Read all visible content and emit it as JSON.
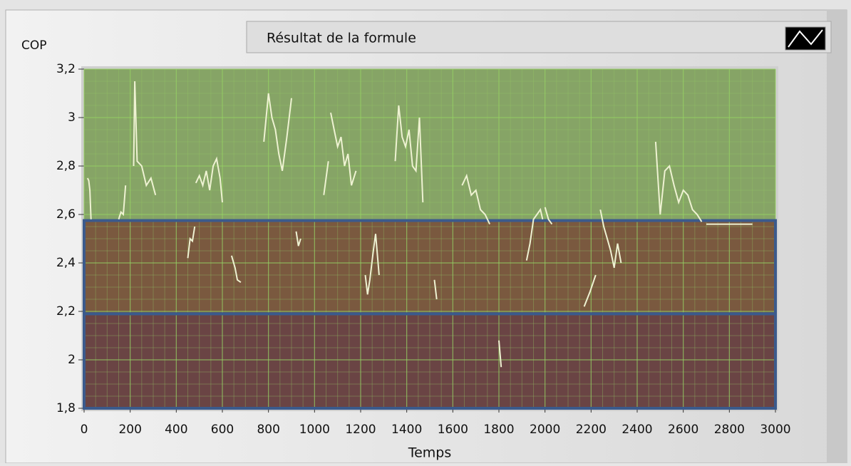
{
  "chart_data": {
    "type": "line",
    "y_label": "COP",
    "x_label": "Temps",
    "series": [
      {
        "name": "Résultat de la formule",
        "color": "#eef2d2",
        "x": [
          15,
          20,
          25,
          30,
          90,
          150,
          160,
          170,
          180,
          195,
          215,
          220,
          230,
          250,
          270,
          290,
          310,
          380,
          450,
          460,
          470,
          480,
          482,
          485,
          500,
          515,
          530,
          545,
          560,
          575,
          590,
          600,
          620,
          640,
          655,
          665,
          680,
          730,
          780,
          800,
          815,
          830,
          845,
          860,
          880,
          900,
          910,
          920,
          930,
          940,
          990,
          1040,
          1050,
          1060,
          1065,
          1070,
          1085,
          1100,
          1115,
          1130,
          1145,
          1160,
          1180,
          1200,
          1220,
          1230,
          1240,
          1255,
          1265,
          1280,
          1320,
          1350,
          1365,
          1380,
          1395,
          1410,
          1425,
          1440,
          1455,
          1470,
          1500,
          1520,
          1530,
          1600,
          1640,
          1660,
          1680,
          1700,
          1720,
          1740,
          1760,
          1780,
          1800,
          1810,
          1870,
          1920,
          1935,
          1950,
          1965,
          1980,
          1990,
          1995,
          2000,
          2015,
          2030,
          2100,
          2170,
          2195,
          2220,
          2230,
          2240,
          2255,
          2270,
          2285,
          2300,
          2315,
          2330,
          2400,
          2480,
          2500,
          2520,
          2540,
          2560,
          2580,
          2600,
          2620,
          2640,
          2660,
          2680,
          2690,
          2700,
          2900
        ],
        "values": [
          2.75,
          2.74,
          2.7,
          2.58,
          null,
          2.58,
          2.61,
          2.6,
          2.72,
          null,
          2.8,
          3.15,
          2.82,
          2.8,
          2.72,
          2.75,
          2.68,
          null,
          2.42,
          2.5,
          2.49,
          2.55,
          null,
          2.73,
          2.76,
          2.72,
          2.78,
          2.7,
          2.8,
          2.83,
          2.75,
          2.65,
          null,
          2.43,
          2.38,
          2.33,
          2.32,
          null,
          2.9,
          3.1,
          3.0,
          2.95,
          2.85,
          2.78,
          2.92,
          3.08,
          null,
          2.53,
          2.47,
          2.5,
          null,
          2.68,
          2.75,
          2.82,
          null,
          3.02,
          2.95,
          2.88,
          2.92,
          2.8,
          2.85,
          2.72,
          2.78,
          null,
          2.35,
          2.27,
          2.33,
          2.45,
          2.52,
          2.35,
          null,
          2.82,
          3.05,
          2.92,
          2.88,
          2.95,
          2.8,
          2.78,
          3.0,
          2.65,
          null,
          2.33,
          2.25,
          null,
          2.72,
          2.76,
          2.68,
          2.7,
          2.62,
          2.6,
          2.56,
          null,
          2.08,
          1.97,
          null,
          2.41,
          2.48,
          2.58,
          2.6,
          2.62,
          2.58,
          null,
          2.63,
          2.58,
          2.56,
          null,
          2.22,
          2.28,
          2.35,
          null,
          2.62,
          2.55,
          2.5,
          2.45,
          2.38,
          2.48,
          2.4,
          null,
          2.9,
          2.6,
          2.78,
          2.8,
          2.72,
          2.65,
          2.7,
          2.68,
          2.62,
          2.6,
          2.57,
          null,
          2.56,
          2.56
        ]
      }
    ],
    "xlim": [
      0,
      3000
    ],
    "xticks": [
      0,
      200,
      400,
      600,
      800,
      1000,
      1200,
      1400,
      1600,
      1800,
      2000,
      2200,
      2400,
      2600,
      2800,
      3000
    ],
    "ylim": [
      1.8,
      3.2
    ],
    "yticks": [
      {
        "value": 1.8,
        "label": "1,8"
      },
      2,
      {
        "value": 2.2,
        "label": "2,2"
      },
      {
        "value": 2.4,
        "label": "2,4"
      },
      {
        "value": 2.6,
        "label": "2,6"
      },
      {
        "value": 2.8,
        "label": "2,8"
      },
      3,
      {
        "value": 3.2,
        "label": "3,2"
      }
    ],
    "grid": true,
    "minor_grid_divisions": 4,
    "zones": [
      {
        "from": 2.575,
        "to": 3.2,
        "color": "#86a466"
      },
      {
        "from": 2.19,
        "to": 2.575,
        "color": "#7a593f",
        "border": "#3b5a8c"
      },
      {
        "from": 1.8,
        "to": 2.19,
        "color": "#6a4444",
        "border": "#3b5a8c"
      }
    ]
  }
}
